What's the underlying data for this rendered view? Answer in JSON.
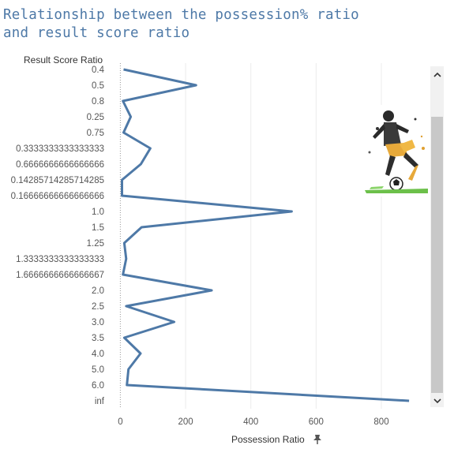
{
  "title_lines": [
    "Relationship between the possession% ratio",
    "and result score ratio"
  ],
  "chart_data": {
    "type": "line",
    "title": "Relationship between the possession% ratio and result score ratio",
    "ylabel": "Result Score Ratio",
    "xlabel": "Possession Ratio",
    "categories": [
      "0.4",
      "0.5",
      "0.8",
      "0.25",
      "0.75",
      "0.3333333333333333",
      "0.6666666666666666",
      "0.14285714285714285",
      "0.16666666666666666",
      "1.0",
      "1.5",
      "1.25",
      "1.3333333333333333",
      "1.6666666666666667",
      "2.0",
      "2.5",
      "3.0",
      "3.5",
      "4.0",
      "5.0",
      "6.0",
      "inf"
    ],
    "values": [
      10,
      232,
      8,
      32,
      10,
      92,
      63,
      5,
      5,
      525,
      65,
      12,
      18,
      8,
      280,
      18,
      165,
      12,
      62,
      25,
      20,
      885
    ],
    "xlim": [
      -30,
      950
    ],
    "xticks": [
      0,
      200,
      400,
      600,
      800
    ],
    "grid": "vertical",
    "series_color": "#4e79a7"
  }
}
